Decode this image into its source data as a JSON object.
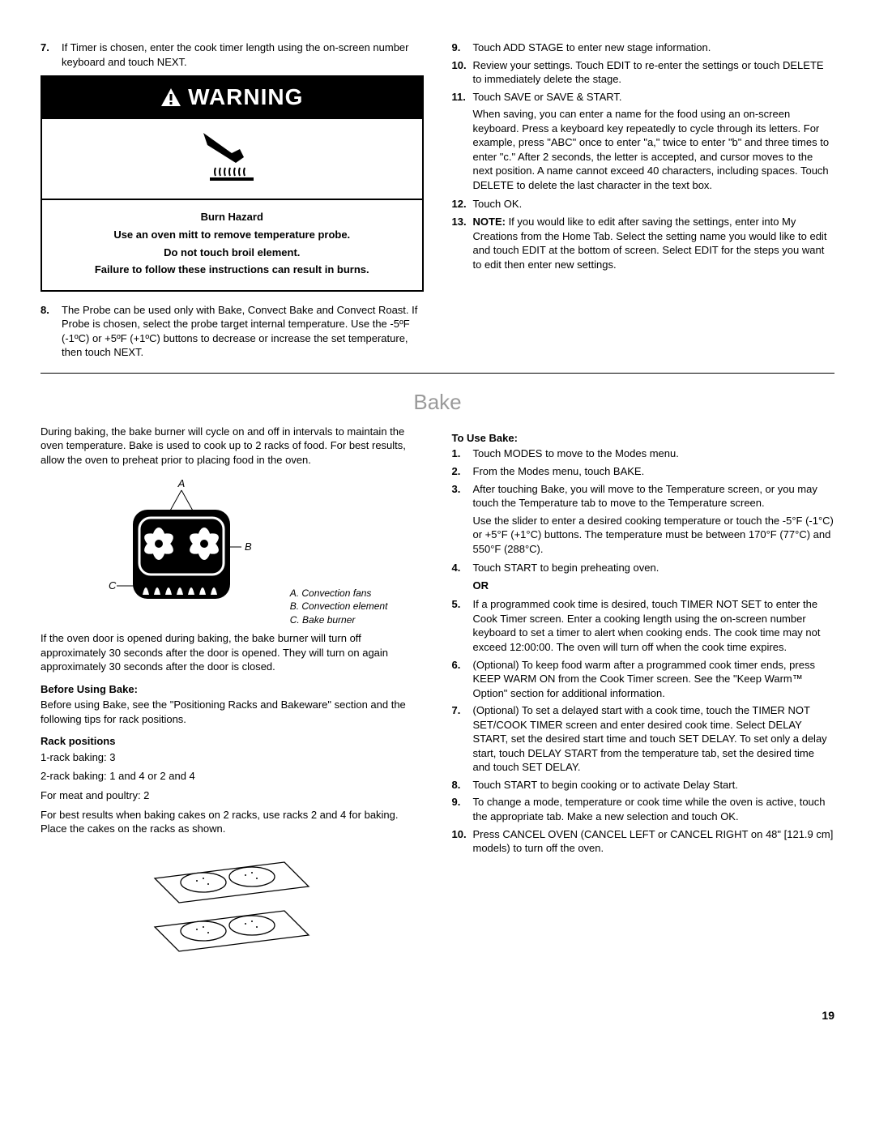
{
  "top": {
    "left_list": [
      {
        "n": "7.",
        "t": "If Timer is chosen, enter the cook timer length using the on-screen number keyboard and touch NEXT."
      }
    ],
    "warning": {
      "header": "WARNING",
      "lines": [
        "Burn Hazard",
        "Use an oven mitt to remove temperature probe.",
        "Do not touch broil element.",
        "Failure to follow these instructions can result in burns."
      ]
    },
    "left_list2": [
      {
        "n": "8.",
        "t": "The Probe can be used only with Bake, Convect Bake and Convect Roast. If Probe is chosen, select the probe target internal temperature. Use the -5ºF (-1ºC) or +5ºF (+1ºC) buttons to decrease or increase the set temperature, then touch NEXT."
      }
    ],
    "right_list": [
      {
        "n": "9.",
        "t": "Touch ADD STAGE to enter new stage information."
      },
      {
        "n": "10.",
        "t": "Review your settings. Touch EDIT to re-enter the settings or touch DELETE to immediately delete the stage."
      },
      {
        "n": "11.",
        "t": "Touch SAVE or SAVE & START."
      }
    ],
    "right_indent1": "When saving, you can enter a name for the food using an on-screen keyboard. Press a keyboard key repeatedly to cycle through its letters. For example, press \"ABC\" once to enter \"a,\" twice to enter \"b\" and three times to enter \"c.\" After 2 seconds, the letter is accepted, and cursor moves to the next position. A name cannot exceed 40 characters, including spaces. Touch DELETE to delete the last character in the text box.",
    "right_list2": [
      {
        "n": "12.",
        "t": "Touch OK."
      },
      {
        "n": "13.",
        "t": "<b>NOTE:</b> If you would like to edit after saving the settings, enter into My Creations from the Home Tab. Select the setting name you would like to edit and touch EDIT at the bottom of screen. Select EDIT for the steps you want to edit then enter new settings."
      }
    ]
  },
  "bake_title": "Bake",
  "bake": {
    "intro_left": "During baking, the bake burner will cycle on and off in intervals to maintain the oven temperature. Bake is used to cook up to 2 racks of food. For best results, allow the oven to preheat prior to placing food in the oven.",
    "legend": {
      "a": "A. Convection fans",
      "b": "B. Convection element",
      "c": "C. Bake burner"
    },
    "para2": "If the oven door is opened during baking, the bake burner will turn off approximately 30 seconds after the door is opened. They will turn on again approximately 30 seconds after the door is closed.",
    "before_heading": "Before Using Bake:",
    "before_text": "Before using Bake, see the \"Positioning Racks and Bakeware\" section and the following tips for rack positions.",
    "rack_heading": "Rack positions",
    "rack_lines": [
      "1-rack baking: 3",
      "2-rack baking: 1 and 4 or 2 and 4",
      "For meat and poultry: 2",
      "For best results when baking cakes on 2 racks, use racks 2 and 4 for baking. Place the cakes on the racks as shown."
    ],
    "to_use_heading": "To Use Bake:",
    "use_list": [
      {
        "n": "1.",
        "t": "Touch MODES to move to the Modes menu."
      },
      {
        "n": "2.",
        "t": "From the Modes menu, touch BAKE."
      },
      {
        "n": "3.",
        "t": "After touching Bake, you will move to the Temperature screen, or you may touch the Temperature tab to move to the Temperature screen."
      }
    ],
    "use_indent3": "Use the slider to enter a desired cooking temperature or touch the -5°F (-1°C) or +5°F (+1°C) buttons. The temperature must be between 170°F (77°C) and 550°F (288°C).",
    "use_list2": [
      {
        "n": "4.",
        "t": "Touch START to begin preheating oven."
      }
    ],
    "or_label": "OR",
    "use_list3": [
      {
        "n": "5.",
        "t": "If a programmed cook time is desired, touch TIMER NOT SET to enter the Cook Timer screen. Enter a cooking length using the on-screen number keyboard to set a timer to alert when cooking ends. The cook time may not exceed 12:00:00. The oven will turn off when the cook time expires."
      },
      {
        "n": "6.",
        "t": "(Optional) To keep food warm after a programmed cook timer ends, press KEEP WARM ON from the Cook Timer screen. See the \"Keep Warm™ Option\" section for additional information."
      },
      {
        "n": "7.",
        "t": "(Optional) To set a delayed start with a cook time, touch the TIMER NOT SET/COOK TIMER screen and enter desired cook time. Select DELAY START, set the desired start time and touch SET DELAY. To set only a delay start, touch DELAY START from the temperature tab, set the desired time and touch SET DELAY."
      },
      {
        "n": "8.",
        "t": "Touch START to begin cooking or to activate Delay Start."
      },
      {
        "n": "9.",
        "t": "To change a mode, temperature or cook time while the oven is active, touch the appropriate tab. Make a new selection and touch OK."
      },
      {
        "n": "10.",
        "t": "Press CANCEL OVEN (CANCEL LEFT or CANCEL RIGHT on 48\" [121.9 cm] models) to turn off the oven."
      }
    ]
  },
  "page_number": "19",
  "labels": {
    "A": "A",
    "B": "B",
    "C": "C"
  }
}
